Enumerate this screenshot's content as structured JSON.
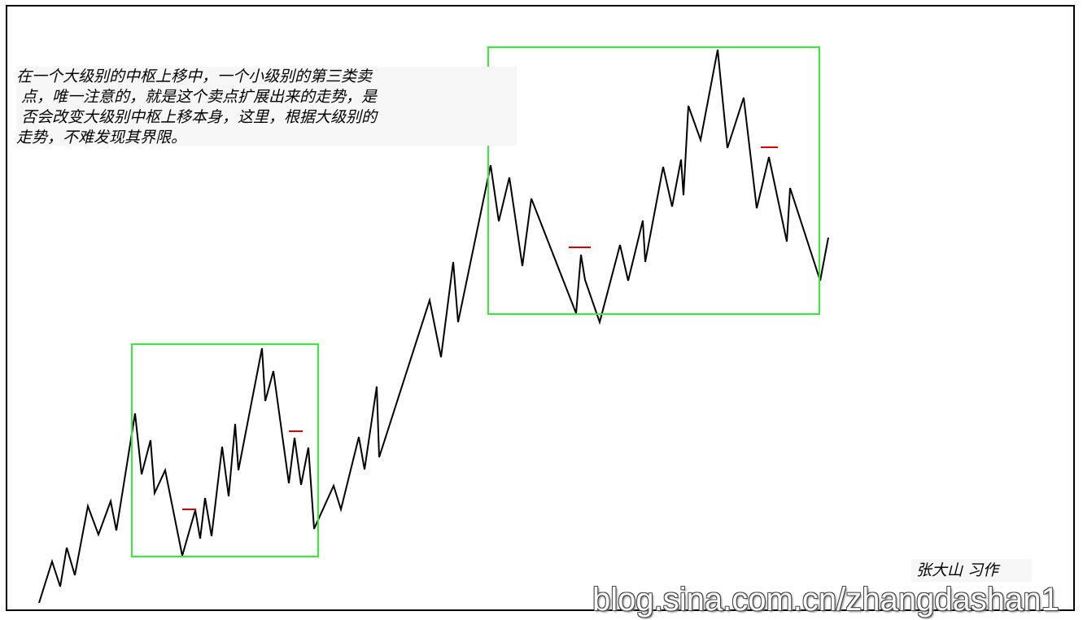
{
  "note_lines": [
    "在一个大级别的中枢上移中，一个小级别的第三类卖",
    " 点，唯一注意的，就是这个卖点扩展出来的走势，是",
    " 否会改变大级别中枢上移本身，这里，根据大级别的",
    "走势，不难发现其界限。"
  ],
  "author": "张大山  习作",
  "watermark": "blog.sina.com.cn/zhangdashan1",
  "colors": {
    "line": "#000000",
    "zone_box": "#33ee33",
    "sell_mark": "#dd0000"
  }
}
